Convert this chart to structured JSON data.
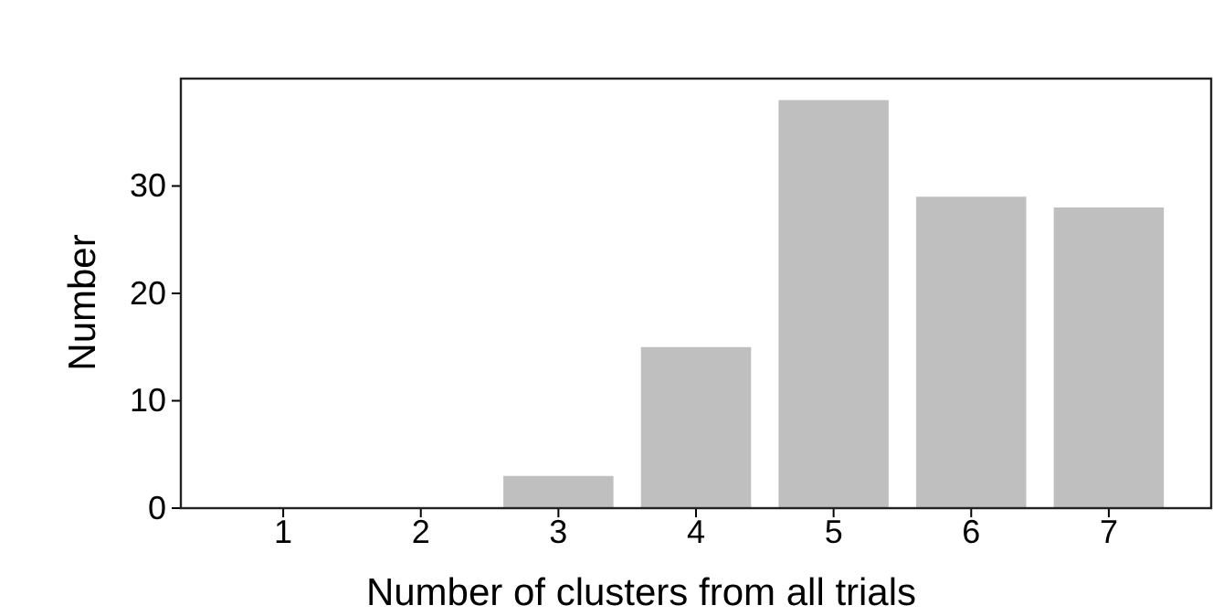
{
  "chart_data": {
    "type": "bar",
    "xlabel": "Number of clusters from all trials",
    "ylabel": "Number",
    "categories": [
      "1",
      "2",
      "3",
      "4",
      "5",
      "6",
      "7"
    ],
    "values": [
      0,
      0,
      3,
      15,
      38,
      29,
      28
    ],
    "color": "#bfbfbf",
    "ylim": [
      0,
      40
    ],
    "yticks": [
      0,
      10,
      20,
      30
    ],
    "grid": false
  }
}
